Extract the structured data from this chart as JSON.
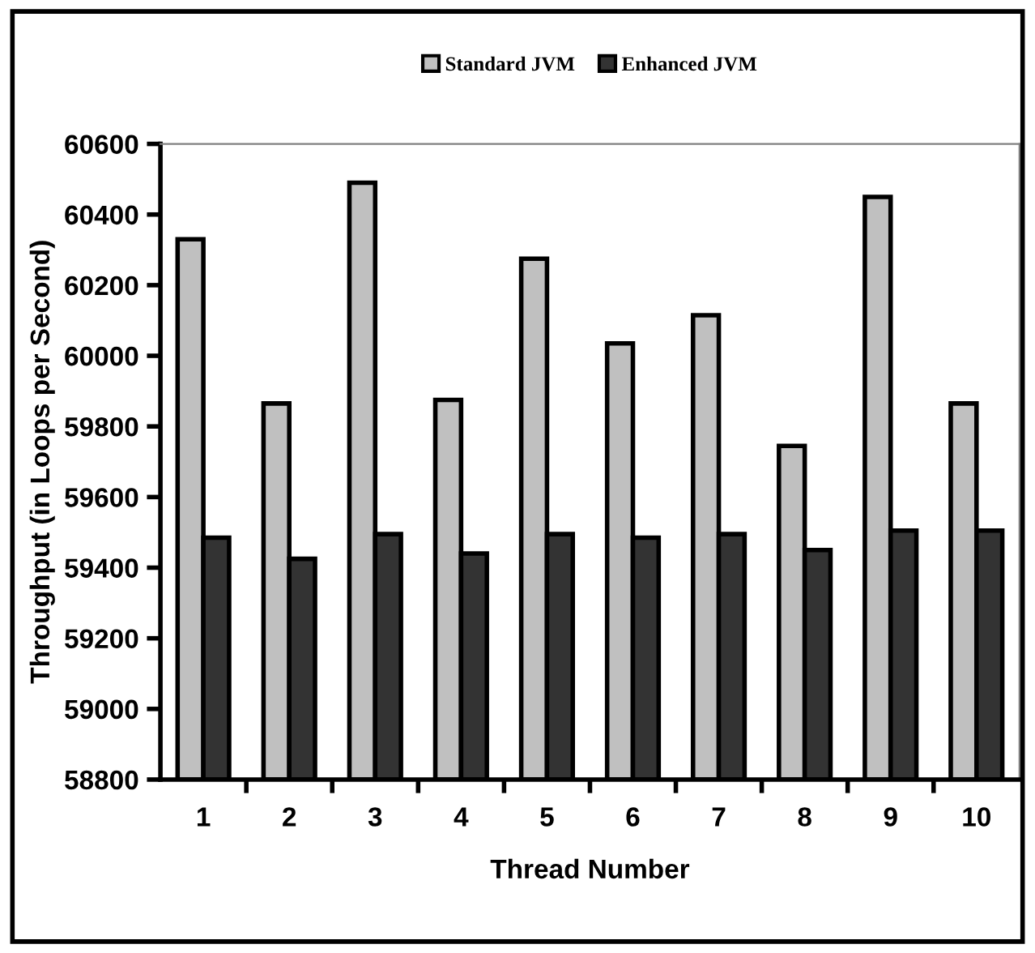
{
  "chart_data": {
    "type": "bar",
    "xlabel": "Thread Number",
    "ylabel": "Throughput (in Loops per Second)",
    "categories": [
      "1",
      "2",
      "3",
      "4",
      "5",
      "6",
      "7",
      "8",
      "9",
      "10"
    ],
    "series": [
      {
        "name": "Standard JVM",
        "color": "#c0c0c0",
        "values": [
          60330,
          59865,
          60490,
          59875,
          60275,
          60035,
          60115,
          59745,
          60450,
          59865
        ]
      },
      {
        "name": "Enhanced JVM",
        "color": "#333333",
        "values": [
          59485,
          59425,
          59495,
          59440,
          59495,
          59485,
          59495,
          59450,
          59505,
          59505
        ]
      }
    ],
    "ylim": [
      58800,
      60600
    ],
    "yticks": [
      58800,
      59000,
      59200,
      59400,
      59600,
      59800,
      60000,
      60200,
      60400,
      60600
    ],
    "grid": false,
    "legend": "top"
  }
}
